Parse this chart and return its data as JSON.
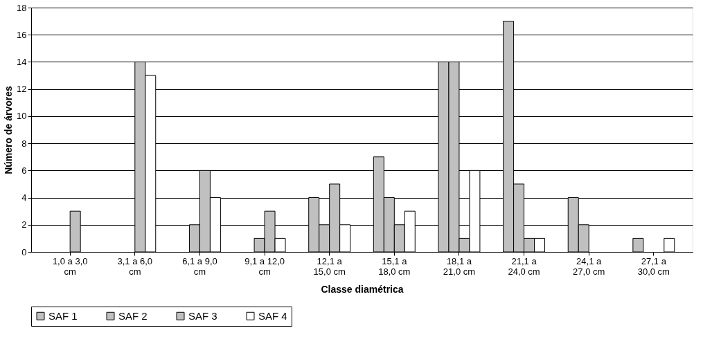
{
  "chart_data": {
    "type": "bar",
    "xlabel": "Classe diamétrica",
    "ylabel": "Número de árvores",
    "categories": [
      "1,0 a 3,0\ncm",
      "3,1 a 6,0\ncm",
      "6,1 a 9,0\ncm",
      "9,1 a 12,0\ncm",
      "12,1 a\n15,0 cm",
      "15,1  a\n18,0 cm",
      "18,1 a\n21,0 cm",
      "21,1 a\n24,0 cm",
      "24,1 a\n27,0 cm",
      "27,1 a\n30,0 cm"
    ],
    "series": [
      {
        "name": "SAF 1",
        "color": "#c0c0c0",
        "values": [
          null,
          null,
          null,
          null,
          4,
          7,
          14,
          17,
          4,
          1
        ]
      },
      {
        "name": "SAF 2",
        "color": "#c0c0c0",
        "values": [
          null,
          null,
          2,
          1,
          2,
          4,
          14,
          5,
          2,
          null
        ]
      },
      {
        "name": "SAF 3",
        "color": "#c0c0c0",
        "values": [
          3,
          14,
          6,
          3,
          5,
          2,
          1,
          1,
          null,
          null
        ]
      },
      {
        "name": "SAF 4",
        "color": "#ffffff",
        "values": [
          null,
          13,
          4,
          1,
          2,
          3,
          6,
          1,
          null,
          1
        ]
      }
    ],
    "ylim": [
      0,
      18
    ],
    "yticks": [
      0,
      2,
      4,
      6,
      8,
      10,
      12,
      14,
      16,
      18
    ],
    "grid": "y",
    "legend": "bottom"
  }
}
